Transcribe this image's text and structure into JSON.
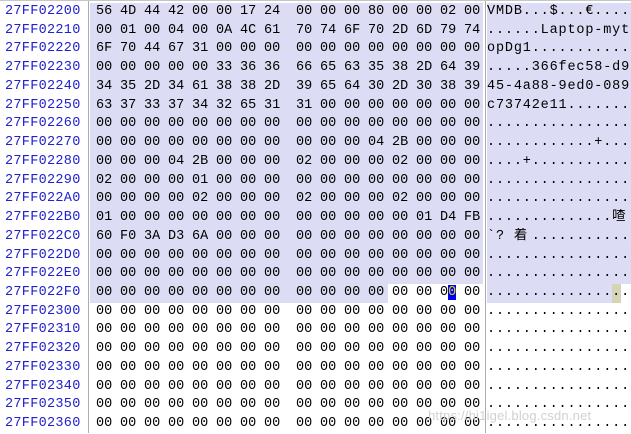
{
  "editor": {
    "watermark": "https://hi1igel.blog.csdn.net",
    "colors": {
      "selection_background": "#dcdcf4",
      "address_text": "#2121ce",
      "hex_caret_background": "#0101f0",
      "hex_caret_digit": "#d8d800",
      "text_caret_background": "#d4d4b6",
      "separator": "#acacac"
    },
    "cursor": {
      "row_index": 15,
      "hex_selected_bytes": 12,
      "caret_byte": 15,
      "caret_digit": 2,
      "ascii_selected_cells": 14,
      "ascii_caret_cell": 15
    },
    "rows": [
      {
        "addr": "27FF02200",
        "sel": true,
        "hex": "56 4D 44 42 00 00 17 24 00 00 00 80 00 00 02 00",
        "ascii": [
          [
            "V",
            1
          ],
          [
            "M",
            1
          ],
          [
            "D",
            1
          ],
          [
            "B",
            1
          ],
          [
            ".",
            3
          ],
          [
            "$",
            1
          ],
          [
            ".",
            3
          ],
          [
            "€",
            1
          ],
          [
            ".",
            4
          ]
        ]
      },
      {
        "addr": "27FF02210",
        "sel": true,
        "hex": "00 01 00 04 00 0A 4C 61 70 74 6F 70 2D 6D 79 74",
        "ascii": [
          [
            ".",
            6
          ],
          [
            "L",
            1
          ],
          [
            "a",
            1
          ],
          [
            "p",
            1
          ],
          [
            "t",
            1
          ],
          [
            "o",
            1
          ],
          [
            "p",
            1
          ],
          [
            "-",
            1
          ],
          [
            "m",
            1
          ],
          [
            "y",
            1
          ],
          [
            "t",
            1
          ]
        ]
      },
      {
        "addr": "27FF02220",
        "sel": true,
        "hex": "6F 70 44 67 31 00 00 00 00 00 00 00 00 00 00 00",
        "ascii": [
          [
            "o",
            1
          ],
          [
            "p",
            1
          ],
          [
            "D",
            1
          ],
          [
            "g",
            1
          ],
          [
            "1",
            1
          ],
          [
            ".",
            11
          ]
        ]
      },
      {
        "addr": "27FF02230",
        "sel": true,
        "hex": "00 00 00 00 00 33 36 36 66 65 63 35 38 2D 64 39",
        "ascii": [
          [
            ".",
            5
          ],
          [
            "3",
            1
          ],
          [
            "6",
            2
          ],
          [
            "f",
            1
          ],
          [
            "e",
            1
          ],
          [
            "c",
            1
          ],
          [
            "5",
            1
          ],
          [
            "8",
            1
          ],
          [
            "-",
            1
          ],
          [
            "d",
            1
          ],
          [
            "9",
            1
          ]
        ]
      },
      {
        "addr": "27FF02240",
        "sel": true,
        "hex": "34 35 2D 34 61 38 38 2D 39 65 64 30 2D 30 38 39",
        "ascii": [
          [
            "4",
            1
          ],
          [
            "5",
            1
          ],
          [
            "-",
            1
          ],
          [
            "4",
            1
          ],
          [
            "a",
            1
          ],
          [
            "8",
            2
          ],
          [
            "-",
            1
          ],
          [
            "9",
            1
          ],
          [
            "e",
            1
          ],
          [
            "d",
            1
          ],
          [
            "0",
            1
          ],
          [
            "-",
            1
          ],
          [
            "0",
            1
          ],
          [
            "8",
            1
          ],
          [
            "9",
            1
          ]
        ]
      },
      {
        "addr": "27FF02250",
        "sel": true,
        "hex": "63 37 33 37 34 32 65 31 31 00 00 00 00 00 00 00",
        "ascii": [
          [
            "c",
            1
          ],
          [
            "7",
            1
          ],
          [
            "3",
            1
          ],
          [
            "7",
            1
          ],
          [
            "4",
            1
          ],
          [
            "2",
            1
          ],
          [
            "e",
            1
          ],
          [
            "1",
            2
          ],
          [
            ".",
            7
          ]
        ]
      },
      {
        "addr": "27FF02260",
        "sel": true,
        "hex": "00 00 00 00 00 00 00 00 00 00 00 00 00 00 00 00",
        "ascii": [
          [
            ".",
            16
          ]
        ]
      },
      {
        "addr": "27FF02270",
        "sel": true,
        "hex": "00 00 00 00 00 00 00 00 00 00 00 04 2B 00 00 00",
        "ascii": [
          [
            ".",
            12
          ],
          [
            "+",
            1
          ],
          [
            ".",
            3
          ]
        ]
      },
      {
        "addr": "27FF02280",
        "sel": true,
        "hex": "00 00 00 04 2B 00 00 00 02 00 00 00 02 00 00 00",
        "ascii": [
          [
            ".",
            4
          ],
          [
            "+",
            1
          ],
          [
            ".",
            11
          ]
        ]
      },
      {
        "addr": "27FF02290",
        "sel": true,
        "hex": "02 00 00 00 01 00 00 00 00 00 00 00 00 00 00 00",
        "ascii": [
          [
            ".",
            16
          ]
        ]
      },
      {
        "addr": "27FF022A0",
        "sel": true,
        "hex": "00 00 00 00 02 00 00 00 02 00 00 00 02 00 00 00",
        "ascii": [
          [
            ".",
            16
          ]
        ]
      },
      {
        "addr": "27FF022B0",
        "sel": true,
        "hex": "01 00 00 00 00 00 00 00 00 00 00 00 00 01 D4 FB",
        "ascii": [
          [
            ".",
            14
          ],
          [
            "喳",
            1,
            2
          ]
        ]
      },
      {
        "addr": "27FF022C0",
        "sel": true,
        "hex": "60 F0 3A D3 6A 00 00 00 00 00 00 00 00 00 00 00",
        "ascii": [
          [
            "`",
            1
          ],
          [
            "?",
            1,
            2
          ],
          [
            "着",
            1,
            2
          ],
          [
            ".",
            11
          ]
        ]
      },
      {
        "addr": "27FF022D0",
        "sel": true,
        "hex": "00 00 00 00 00 00 00 00 00 00 00 00 00 00 00 00",
        "ascii": [
          [
            ".",
            16
          ]
        ]
      },
      {
        "addr": "27FF022E0",
        "sel": true,
        "hex": "00 00 00 00 00 00 00 00 00 00 00 00 00 00 00 00",
        "ascii": [
          [
            ".",
            16
          ]
        ]
      },
      {
        "addr": "27FF022F0",
        "sel": true,
        "hex": "00 00 00 00 00 00 00 00 00 00 00 00 00 00 00 00",
        "ascii": [
          [
            ".",
            16
          ]
        ]
      },
      {
        "addr": "27FF02300",
        "sel": false,
        "hex": "00 00 00 00 00 00 00 00 00 00 00 00 00 00 00 00",
        "ascii": [
          [
            ".",
            16
          ]
        ]
      },
      {
        "addr": "27FF02310",
        "sel": false,
        "hex": "00 00 00 00 00 00 00 00 00 00 00 00 00 00 00 00",
        "ascii": [
          [
            ".",
            16
          ]
        ]
      },
      {
        "addr": "27FF02320",
        "sel": false,
        "hex": "00 00 00 00 00 00 00 00 00 00 00 00 00 00 00 00",
        "ascii": [
          [
            ".",
            16
          ]
        ]
      },
      {
        "addr": "27FF02330",
        "sel": false,
        "hex": "00 00 00 00 00 00 00 00 00 00 00 00 00 00 00 00",
        "ascii": [
          [
            ".",
            16
          ]
        ]
      },
      {
        "addr": "27FF02340",
        "sel": false,
        "hex": "00 00 00 00 00 00 00 00 00 00 00 00 00 00 00 00",
        "ascii": [
          [
            ".",
            16
          ]
        ]
      },
      {
        "addr": "27FF02350",
        "sel": false,
        "hex": "00 00 00 00 00 00 00 00 00 00 00 00 00 00 00 00",
        "ascii": [
          [
            ".",
            16
          ]
        ]
      },
      {
        "addr": "27FF02360",
        "sel": false,
        "hex": "00 00 00 00 00 00 00 00 00 00 00 00 00 00 00 00",
        "ascii": [
          [
            ".",
            16
          ]
        ]
      }
    ]
  }
}
